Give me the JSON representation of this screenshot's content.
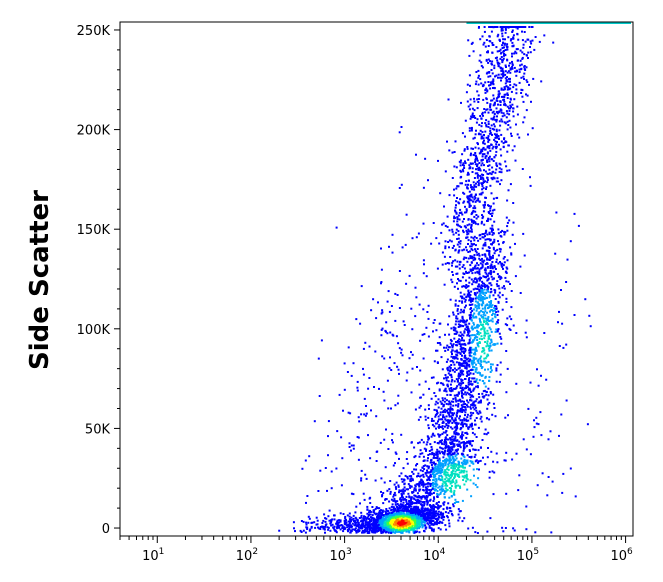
{
  "chart_data": {
    "type": "heatmap",
    "title": "",
    "xlabel": "",
    "ylabel": "Side Scatter",
    "x_scale": "log",
    "xlim": [
      4,
      1200000
    ],
    "ylim": [
      -4000,
      254000
    ],
    "x_ticks": [
      {
        "value": 10,
        "base": "10",
        "exp": "1"
      },
      {
        "value": 100,
        "base": "10",
        "exp": "2"
      },
      {
        "value": 1000,
        "base": "10",
        "exp": "3"
      },
      {
        "value": 10000,
        "base": "10",
        "exp": "4"
      },
      {
        "value": 100000,
        "base": "10",
        "exp": "5"
      },
      {
        "value": 1000000,
        "base": "10",
        "exp": "6"
      }
    ],
    "y_ticks": [
      {
        "value": 0,
        "label": "0"
      },
      {
        "value": 50000,
        "label": "50K"
      },
      {
        "value": 100000,
        "label": "100K"
      },
      {
        "value": 150000,
        "label": "150K"
      },
      {
        "value": 200000,
        "label": "200K"
      },
      {
        "value": 250000,
        "label": "250K"
      }
    ],
    "color_scale": [
      "#0000ff",
      "#00a0ff",
      "#00e0c0",
      "#40ff40",
      "#ffff00",
      "#ff8000",
      "#ff0000"
    ],
    "density_clusters": [
      {
        "x_center": 4000,
        "y_center": 3000,
        "x_spread_decades": 0.22,
        "y_spread": 3500,
        "level": "high"
      },
      {
        "x_center": 15000,
        "y_center": 25000,
        "x_spread_decades": 0.25,
        "y_spread": 9000,
        "level": "medium"
      },
      {
        "x_center": 30000,
        "y_center": 100000,
        "x_spread_decades": 0.2,
        "y_spread": 30000,
        "level": "medium"
      },
      {
        "x_center": 40000,
        "y_center": 200000,
        "x_spread_decades": 0.22,
        "y_spread": 35000,
        "level": "low"
      }
    ],
    "grid": false,
    "legend": "none"
  }
}
